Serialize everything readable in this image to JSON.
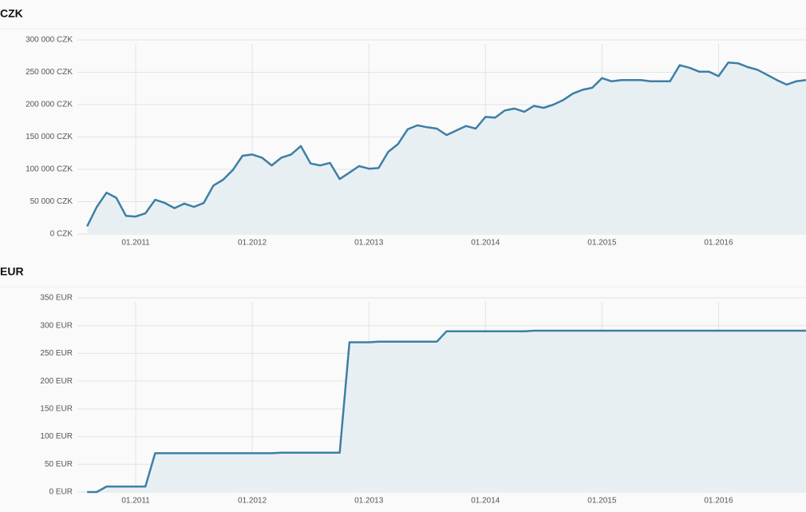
{
  "chart_data": [
    {
      "type": "area",
      "title": "CZK",
      "color": "#3d7fa6",
      "fill_color": "#e8eff3",
      "grid": true,
      "x": [
        "08.2010",
        "09.2010",
        "10.2010",
        "11.2010",
        "12.2010",
        "01.2011",
        "02.2011",
        "03.2011",
        "04.2011",
        "05.2011",
        "06.2011",
        "07.2011",
        "08.2011",
        "09.2011",
        "10.2011",
        "11.2011",
        "12.2011",
        "01.2012",
        "02.2012",
        "03.2012",
        "04.2012",
        "05.2012",
        "06.2012",
        "07.2012",
        "08.2012",
        "09.2012",
        "10.2012",
        "11.2012",
        "12.2012",
        "01.2013",
        "02.2013",
        "03.2013",
        "04.2013",
        "05.2013",
        "06.2013",
        "07.2013",
        "08.2013",
        "09.2013",
        "10.2013",
        "11.2013",
        "12.2013",
        "01.2014",
        "02.2014",
        "03.2014",
        "04.2014",
        "05.2014",
        "06.2014",
        "07.2014",
        "08.2014",
        "09.2014",
        "10.2014",
        "11.2014",
        "12.2014",
        "01.2015",
        "02.2015",
        "03.2015",
        "04.2015",
        "05.2015",
        "06.2015",
        "07.2015",
        "08.2015",
        "09.2015",
        "10.2015",
        "11.2015",
        "12.2015",
        "01.2016",
        "02.2016",
        "03.2016",
        "04.2016",
        "05.2016",
        "06.2016",
        "07.2016",
        "08.2016",
        "09.2016",
        "10.2016"
      ],
      "values": [
        12000,
        42000,
        64000,
        56000,
        28000,
        27000,
        32000,
        53000,
        48000,
        40000,
        47000,
        42000,
        48000,
        75000,
        84000,
        99000,
        121000,
        123000,
        118000,
        106000,
        118000,
        123000,
        136000,
        109000,
        106000,
        110000,
        85000,
        95000,
        105000,
        101000,
        102000,
        127000,
        139000,
        162000,
        168000,
        165000,
        163000,
        153000,
        160000,
        167000,
        163000,
        181000,
        180000,
        191000,
        194000,
        189000,
        198000,
        195000,
        200000,
        207000,
        217000,
        223000,
        226000,
        241000,
        236000,
        238000,
        238000,
        238000,
        236000,
        236000,
        236000,
        261000,
        257000,
        251000,
        251000,
        244000,
        265000,
        264000,
        258000,
        254000,
        246000,
        238000,
        231000,
        236000,
        238000
      ],
      "xlim": [
        "07.2010",
        "10.2016"
      ],
      "xticks": [
        "01.2011",
        "01.2012",
        "01.2013",
        "01.2014",
        "01.2015",
        "01.2016"
      ],
      "ylim": [
        0,
        300000
      ],
      "yticks": [
        {
          "value": 0,
          "label": "0 CZK"
        },
        {
          "value": 50000,
          "label": "50 000 CZK"
        },
        {
          "value": 100000,
          "label": "100 000 CZK"
        },
        {
          "value": 150000,
          "label": "150 000 CZK"
        },
        {
          "value": 200000,
          "label": "200 000 CZK"
        },
        {
          "value": 250000,
          "label": "250 000 CZK"
        },
        {
          "value": 300000,
          "label": "300 000 CZK"
        }
      ]
    },
    {
      "type": "area",
      "title": "EUR",
      "color": "#3d7fa6",
      "fill_color": "#e8eff3",
      "grid": true,
      "x": [
        "08.2010",
        "09.2010",
        "10.2010",
        "11.2010",
        "12.2010",
        "01.2011",
        "02.2011",
        "03.2011",
        "04.2011",
        "05.2011",
        "06.2011",
        "07.2011",
        "08.2011",
        "09.2011",
        "10.2011",
        "11.2011",
        "12.2011",
        "01.2012",
        "02.2012",
        "03.2012",
        "04.2012",
        "05.2012",
        "06.2012",
        "07.2012",
        "08.2012",
        "09.2012",
        "10.2012",
        "11.2012",
        "12.2012",
        "01.2013",
        "02.2013",
        "03.2013",
        "04.2013",
        "05.2013",
        "06.2013",
        "07.2013",
        "08.2013",
        "09.2013",
        "10.2013",
        "11.2013",
        "12.2013",
        "01.2014",
        "02.2014",
        "03.2014",
        "04.2014",
        "05.2014",
        "06.2014",
        "07.2014",
        "08.2014",
        "09.2014",
        "10.2014",
        "11.2014",
        "12.2014",
        "01.2015",
        "02.2015",
        "03.2015",
        "04.2015",
        "05.2015",
        "06.2015",
        "07.2015",
        "08.2015",
        "09.2015",
        "10.2015",
        "11.2015",
        "12.2015",
        "01.2016",
        "02.2016",
        "03.2016",
        "04.2016",
        "05.2016",
        "06.2016",
        "07.2016",
        "08.2016",
        "09.2016",
        "10.2016"
      ],
      "values": [
        0,
        0,
        10,
        10,
        10,
        10,
        10,
        70,
        70,
        70,
        70,
        70,
        70,
        70,
        70,
        70,
        70,
        70,
        70,
        70,
        71,
        71,
        71,
        71,
        71,
        71,
        71,
        270,
        270,
        270,
        271,
        271,
        271,
        271,
        271,
        271,
        271,
        290,
        290,
        290,
        290,
        290,
        290,
        290,
        290,
        290,
        291,
        291,
        291,
        291,
        291,
        291,
        291,
        291,
        291,
        291,
        291,
        291,
        291,
        291,
        291,
        291,
        291,
        291,
        291,
        291,
        291,
        291,
        291,
        291,
        291,
        291,
        291,
        291,
        291
      ],
      "xlim": [
        "07.2010",
        "10.2016"
      ],
      "xticks": [
        "01.2011",
        "01.2012",
        "01.2013",
        "01.2014",
        "01.2015",
        "01.2016"
      ],
      "ylim": [
        0,
        350
      ],
      "yticks": [
        {
          "value": 0,
          "label": "0 EUR"
        },
        {
          "value": 50,
          "label": "50 EUR"
        },
        {
          "value": 100,
          "label": "100 EUR"
        },
        {
          "value": 150,
          "label": "150 EUR"
        },
        {
          "value": 200,
          "label": "200 EUR"
        },
        {
          "value": 250,
          "label": "250 EUR"
        },
        {
          "value": 300,
          "label": "300 EUR"
        },
        {
          "value": 350,
          "label": "350 EUR"
        }
      ]
    }
  ]
}
